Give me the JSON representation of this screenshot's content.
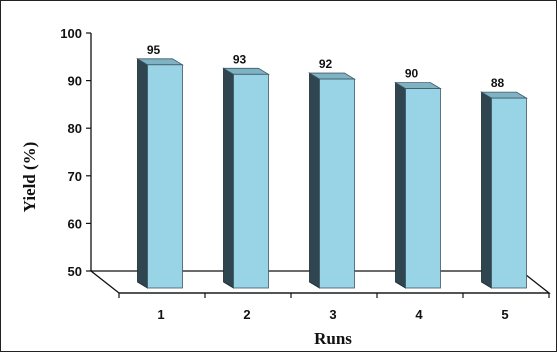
{
  "chart_data": {
    "type": "bar",
    "xlabel": "Runs",
    "ylabel": "Yield (%)",
    "ylim": [
      50,
      100
    ],
    "yticks": [
      "50",
      "60",
      "70",
      "80",
      "90",
      "100"
    ],
    "categories": [
      "1",
      "2",
      "3",
      "4",
      "5"
    ],
    "values": [
      95,
      93,
      92,
      90,
      88
    ],
    "data_labels": [
      "95",
      "93",
      "92",
      "90",
      "88"
    ],
    "grid": false,
    "legend": "none",
    "colors": {
      "bar_front": "#99d3e6",
      "bar_top": "#7fb2c2",
      "bar_side": "#2f4550"
    }
  }
}
